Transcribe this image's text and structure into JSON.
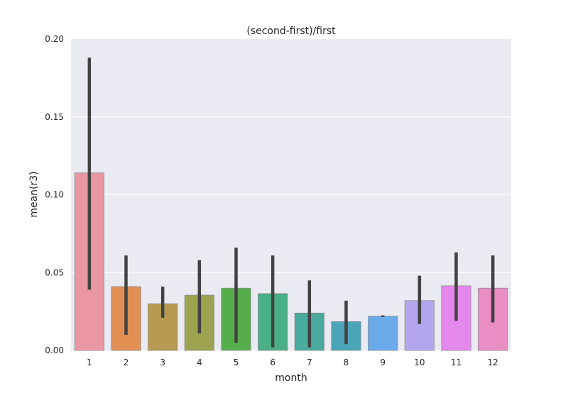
{
  "chart_data": {
    "type": "bar",
    "title": "(second-first)/first",
    "xlabel": "month",
    "ylabel": "mean(r3)",
    "categories": [
      "1",
      "2",
      "3",
      "4",
      "5",
      "6",
      "7",
      "8",
      "9",
      "10",
      "11",
      "12"
    ],
    "values": [
      0.114,
      0.041,
      0.03,
      0.0355,
      0.04,
      0.0365,
      0.024,
      0.0185,
      0.022,
      0.032,
      0.0415,
      0.04
    ],
    "error_low": [
      0.039,
      0.01,
      0.021,
      0.011,
      0.005,
      0.002,
      0.002,
      0.004,
      0.0215,
      0.017,
      0.019,
      0.018
    ],
    "error_high": [
      0.188,
      0.061,
      0.041,
      0.058,
      0.066,
      0.061,
      0.045,
      0.032,
      0.0225,
      0.048,
      0.063,
      0.061
    ],
    "colors": [
      "#ea96a3",
      "#e18f52",
      "#b79a50",
      "#9da24f",
      "#56ae4b",
      "#4aaf86",
      "#48ab9e",
      "#4ba5b8",
      "#6aaaeb",
      "#b4a6ee",
      "#e488ee",
      "#e98dc4"
    ],
    "ylim": [
      0,
      0.2
    ],
    "yticks": [
      "0.00",
      "0.05",
      "0.10",
      "0.15",
      "0.20"
    ],
    "grid": true
  }
}
